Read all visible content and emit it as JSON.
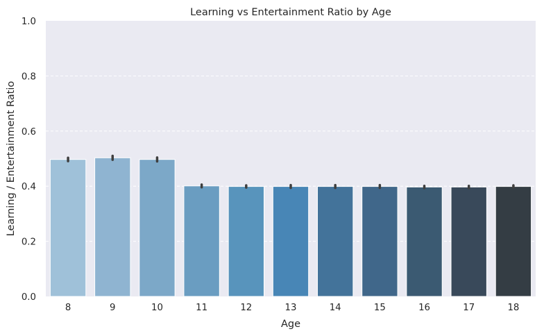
{
  "chart_data": {
    "type": "bar",
    "title": "Learning vs Entertainment Ratio by Age",
    "xlabel": "Age",
    "ylabel": "Learning / Entertainment Ratio",
    "categories": [
      "8",
      "9",
      "10",
      "11",
      "12",
      "13",
      "14",
      "15",
      "16",
      "17",
      "18"
    ],
    "values": [
      0.497,
      0.503,
      0.497,
      0.401,
      0.399,
      0.399,
      0.399,
      0.399,
      0.397,
      0.397,
      0.399
    ],
    "errors": [
      0.006,
      0.007,
      0.007,
      0.005,
      0.004,
      0.005,
      0.005,
      0.005,
      0.004,
      0.004,
      0.004
    ],
    "colors": [
      "#9fc1d9",
      "#8fb4d1",
      "#7ca8c8",
      "#6a9dc1",
      "#5894bc",
      "#4886b6",
      "#43739a",
      "#40678a",
      "#3b5a72",
      "#39495a",
      "#343d44"
    ],
    "ylim": [
      0,
      1.0
    ],
    "yticks": [
      "0.0",
      "0.2",
      "0.4",
      "0.6",
      "0.8",
      "1.0"
    ],
    "grid": true,
    "background": "#eaeaf2",
    "errorbar_color": "#3f3f3f"
  }
}
